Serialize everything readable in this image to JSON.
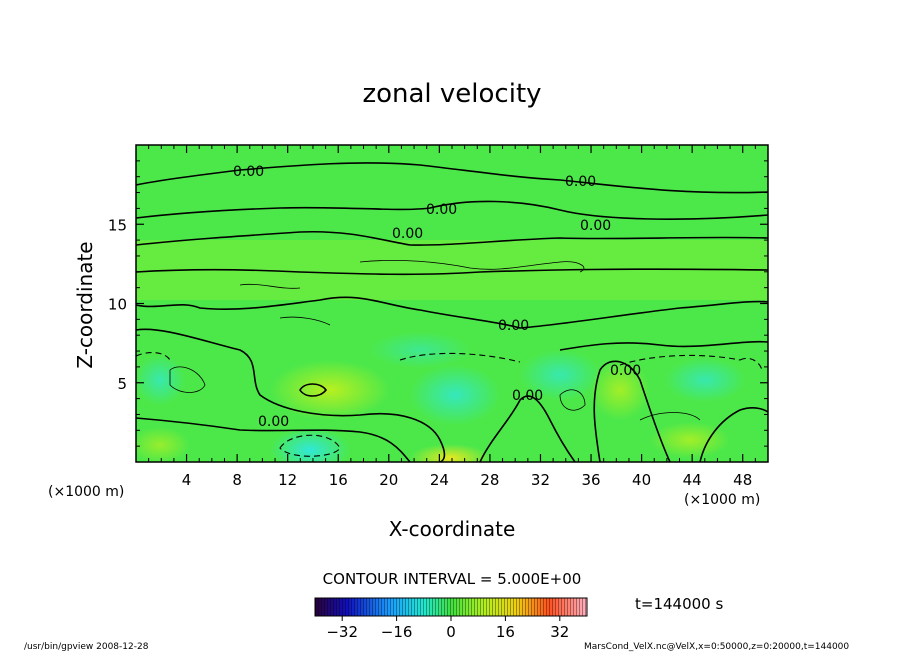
{
  "chart_data": {
    "type": "heatmap",
    "title": "zonal velocity",
    "xlabel": "X-coordinate",
    "ylabel": "Z-coordinate",
    "x_unit": "(×1000 m)",
    "x_unit_right": "(×1000 m)",
    "xlim": [
      0,
      50
    ],
    "ylim": [
      0,
      20
    ],
    "x_ticks": [
      "4",
      "8",
      "12",
      "16",
      "20",
      "24",
      "28",
      "32",
      "36",
      "40",
      "44",
      "48"
    ],
    "y_ticks": [
      "5",
      "10",
      "15"
    ],
    "contour_labels": [
      "0.00",
      "0.00",
      "0.00",
      "0.00",
      "0.00",
      "0.00",
      "0.00",
      "0.00",
      "0.00"
    ],
    "contour_interval": "CONTOUR INTERVAL = 5.000E+00",
    "time": "t=144000 s",
    "colorbar": {
      "range": [
        -40,
        40
      ],
      "ticks": [
        "−32",
        "−16",
        "0",
        "16",
        "32"
      ]
    },
    "grid": false
  },
  "footer": {
    "left": "/usr/bin/gpview  2008-12-28",
    "right": "MarsCond_VelX.nc@VelX,x=0:50000,z=0:20000,t=144000"
  }
}
